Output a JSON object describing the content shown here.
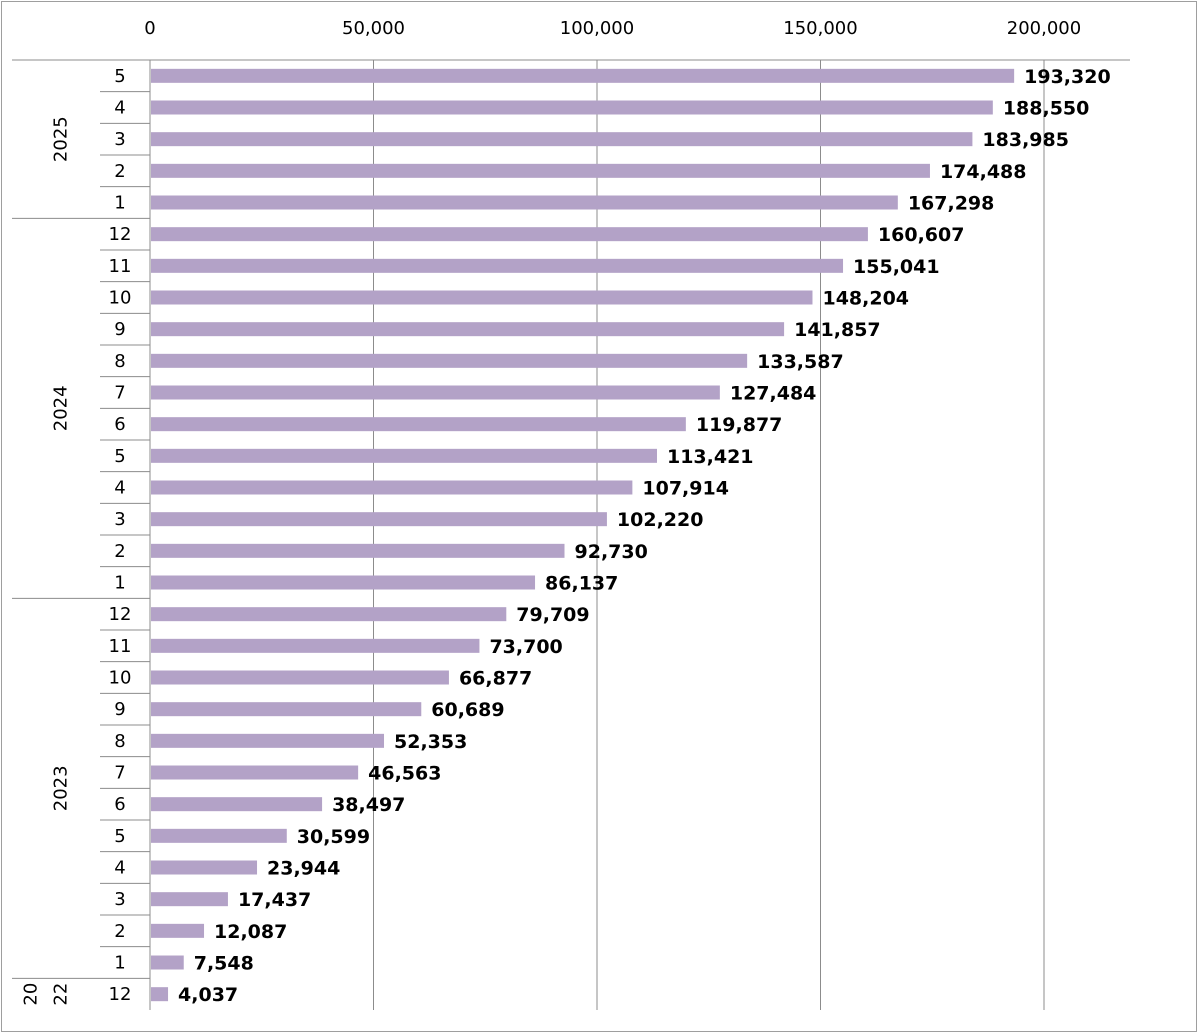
{
  "chart_data": {
    "type": "bar",
    "orientation": "horizontal",
    "title": "",
    "xlabel": "",
    "ylabel": "",
    "xlim": [
      0,
      200000
    ],
    "x_ticks": [
      "0",
      "50,000",
      "100,000",
      "150,000",
      "200,000"
    ],
    "x_tick_values": [
      0,
      50000,
      100000,
      150000,
      200000
    ],
    "x_axis_position": "top",
    "grid": true,
    "bar_color": "#b3a2c7",
    "categories": [
      {
        "year": "2025",
        "month": "5",
        "value": 193320,
        "label": "193,320"
      },
      {
        "year": "2025",
        "month": "4",
        "value": 188550,
        "label": "188,550"
      },
      {
        "year": "2025",
        "month": "3",
        "value": 183985,
        "label": "183,985"
      },
      {
        "year": "2025",
        "month": "2",
        "value": 174488,
        "label": "174,488"
      },
      {
        "year": "2025",
        "month": "1",
        "value": 167298,
        "label": "167,298"
      },
      {
        "year": "2024",
        "month": "12",
        "value": 160607,
        "label": "160,607"
      },
      {
        "year": "2024",
        "month": "11",
        "value": 155041,
        "label": "155,041"
      },
      {
        "year": "2024",
        "month": "10",
        "value": 148204,
        "label": "148,204"
      },
      {
        "year": "2024",
        "month": "9",
        "value": 141857,
        "label": "141,857"
      },
      {
        "year": "2024",
        "month": "8",
        "value": 133587,
        "label": "133,587"
      },
      {
        "year": "2024",
        "month": "7",
        "value": 127484,
        "label": "127,484"
      },
      {
        "year": "2024",
        "month": "6",
        "value": 119877,
        "label": "119,877"
      },
      {
        "year": "2024",
        "month": "5",
        "value": 113421,
        "label": "113,421"
      },
      {
        "year": "2024",
        "month": "4",
        "value": 107914,
        "label": "107,914"
      },
      {
        "year": "2024",
        "month": "3",
        "value": 102220,
        "label": "102,220"
      },
      {
        "year": "2024",
        "month": "2",
        "value": 92730,
        "label": "92,730"
      },
      {
        "year": "2024",
        "month": "1",
        "value": 86137,
        "label": "86,137"
      },
      {
        "year": "2023",
        "month": "12",
        "value": 79709,
        "label": "79,709"
      },
      {
        "year": "2023",
        "month": "11",
        "value": 73700,
        "label": "73,700"
      },
      {
        "year": "2023",
        "month": "10",
        "value": 66877,
        "label": "66,877"
      },
      {
        "year": "2023",
        "month": "9",
        "value": 60689,
        "label": "60,689"
      },
      {
        "year": "2023",
        "month": "8",
        "value": 52353,
        "label": "52,353"
      },
      {
        "year": "2023",
        "month": "7",
        "value": 46563,
        "label": "46,563"
      },
      {
        "year": "2023",
        "month": "6",
        "value": 38497,
        "label": "38,497"
      },
      {
        "year": "2023",
        "month": "5",
        "value": 30599,
        "label": "30,599"
      },
      {
        "year": "2023",
        "month": "4",
        "value": 23944,
        "label": "23,944"
      },
      {
        "year": "2023",
        "month": "3",
        "value": 17437,
        "label": "17,437"
      },
      {
        "year": "2023",
        "month": "2",
        "value": 12087,
        "label": "12,087"
      },
      {
        "year": "2023",
        "month": "1",
        "value": 7548,
        "label": "7,548"
      },
      {
        "year": "2022",
        "month": "12",
        "value": 4037,
        "label": "4,037"
      }
    ],
    "year_groups": [
      {
        "year": "2025",
        "lines": [
          "2025"
        ]
      },
      {
        "year": "2024",
        "lines": [
          "2024"
        ]
      },
      {
        "year": "2023",
        "lines": [
          "2023"
        ]
      },
      {
        "year": "2022",
        "lines": [
          "20",
          "22"
        ]
      }
    ]
  }
}
